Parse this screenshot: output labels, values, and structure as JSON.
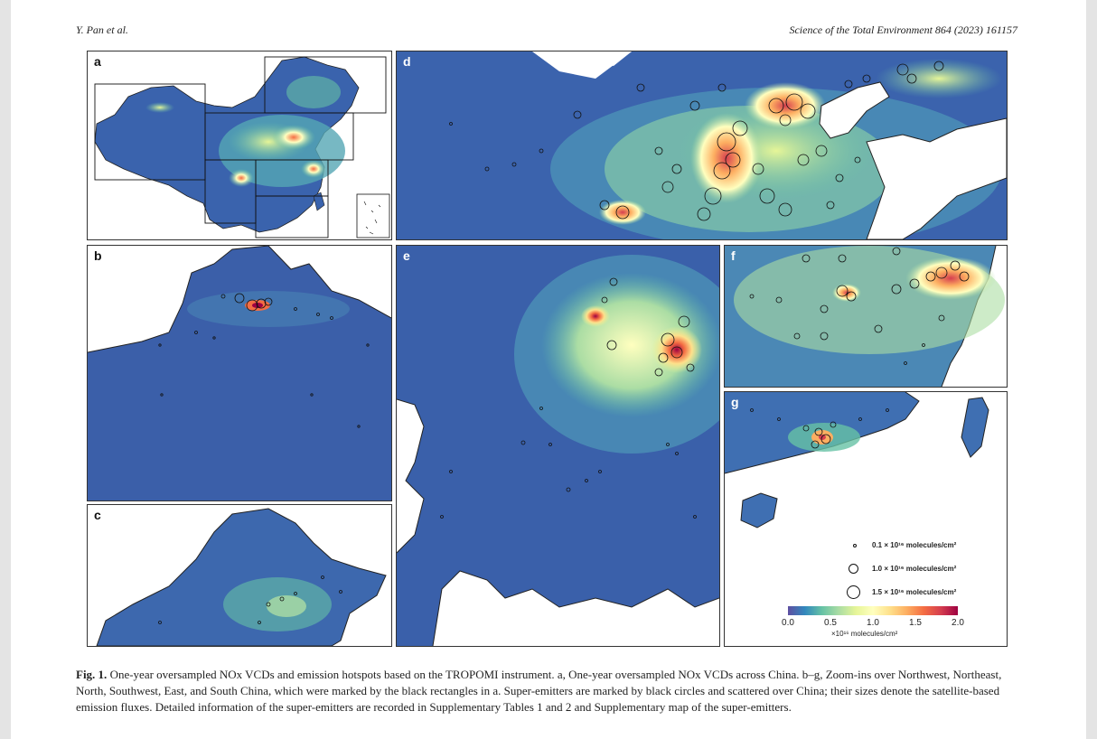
{
  "header": {
    "author": "Y. Pan et al.",
    "journal": "Science of the Total Environment 864 (2023) 161157"
  },
  "panels": {
    "a": "a",
    "b": "b",
    "c": "c",
    "d": "d",
    "e": "e",
    "f": "f",
    "g": "g"
  },
  "legend": {
    "items": [
      {
        "label": "0.1 × 10¹⁶ molecules/cm²",
        "size": 0.1
      },
      {
        "label": "1.0 × 10¹⁶ molecules/cm²",
        "size": 1.0
      },
      {
        "label": "1.5 × 10¹⁶ molecules/cm²",
        "size": 1.5
      }
    ]
  },
  "colorbar": {
    "ticks": [
      "0.0",
      "0.5",
      "1.0",
      "1.5",
      "2.0"
    ],
    "label": "×10¹⁶ molecules/cm²",
    "colors": [
      "#5e4fa2",
      "#3288bd",
      "#66c2a5",
      "#abdda4",
      "#e6f598",
      "#ffffbf",
      "#fee08b",
      "#fdae61",
      "#f46d43",
      "#d53e4f",
      "#9e0142"
    ]
  },
  "caption": {
    "fig_label": "Fig. 1.",
    "text": "One-year oversampled NOx VCDs and emission hotspots based on the TROPOMI instrument. a, One-year oversampled NOx VCDs across China. b–g, Zoom-ins over Northwest, Northeast, North, Southwest, East, and South China, which were marked by the black rectangles in a. Super-emitters are marked by black circles and scattered over China; their sizes denote the satellite-based emission fluxes. Detailed information of the super-emitters are recorded in Supplementary Tables 1 and 2 and Supplementary map of the super-emitters."
  }
}
